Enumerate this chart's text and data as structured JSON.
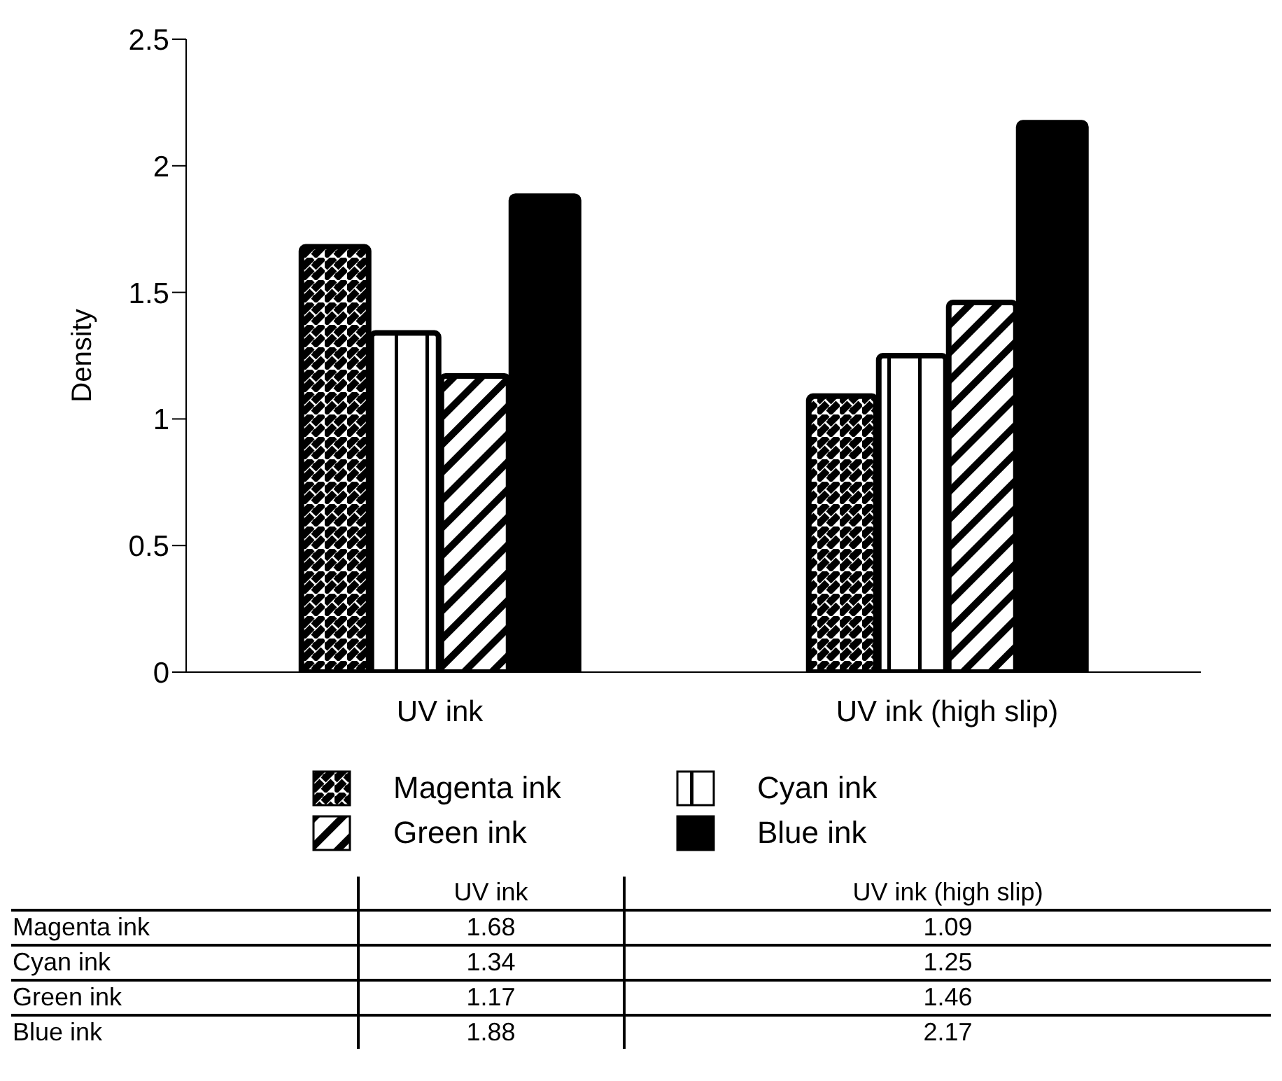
{
  "chart_data": {
    "type": "bar",
    "ylabel": "Density",
    "categories": [
      "UV ink",
      "UV ink (high slip)"
    ],
    "series": [
      {
        "name": "Magenta ink",
        "color": "#000000",
        "values": [
          1.68,
          1.09
        ]
      },
      {
        "name": "Cyan ink",
        "color": "#000000",
        "values": [
          1.34,
          1.25
        ]
      },
      {
        "name": "Green ink",
        "color": "#000000",
        "values": [
          1.17,
          1.46
        ]
      },
      {
        "name": "Blue ink",
        "color": "#000000",
        "values": [
          1.88,
          2.17
        ]
      }
    ],
    "ylim": [
      0,
      2.5
    ],
    "yticks": [
      0,
      0.5,
      1,
      1.5,
      2,
      2.5
    ],
    "grid": false,
    "legend": "bottom",
    "data_labels": true
  }
}
